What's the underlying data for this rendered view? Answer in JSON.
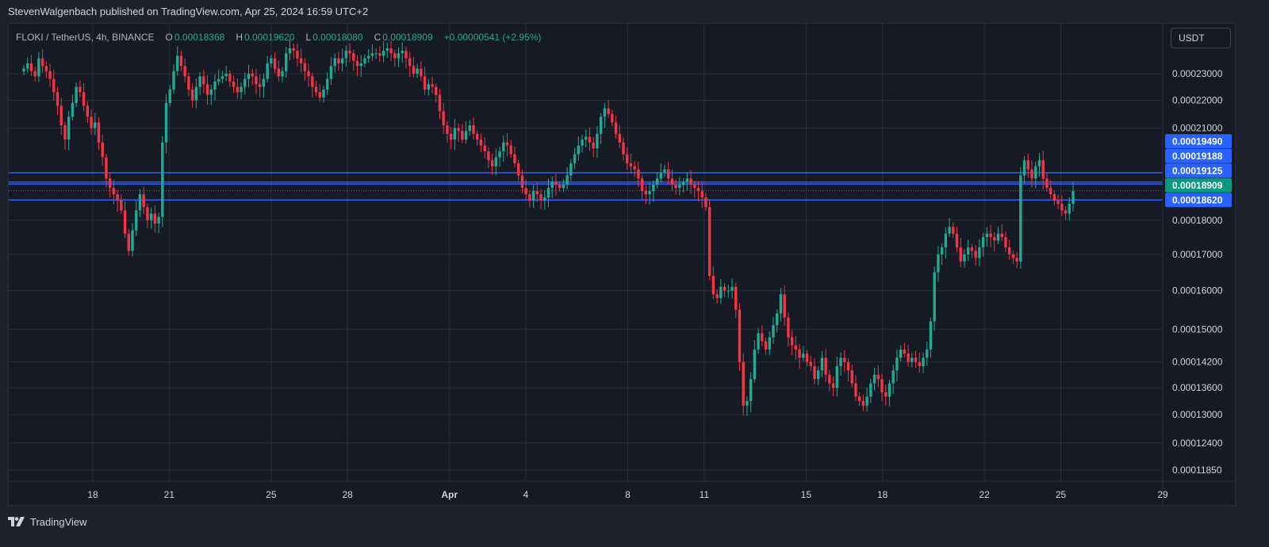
{
  "header": {
    "text": "StevenWalgenbach published on TradingView.com, Apr 25, 2024 16:59 UTC+2"
  },
  "legend": {
    "symbol": "FLOKI / TetherUS, 4h, BINANCE",
    "o_label": "O",
    "o_value": "0.00018368",
    "h_label": "H",
    "h_value": "0.00019620",
    "l_label": "L",
    "l_value": "0.00018080",
    "c_label": "C",
    "c_value": "0.00018909",
    "change": "+0.00000541 (+2.95%)"
  },
  "currency": "USDT",
  "footer": {
    "brand": "TradingView"
  },
  "colors": {
    "up": "#22ab94",
    "down": "#f23645",
    "grid": "#2a2e39",
    "hline": "#2962ff",
    "label_blue": "#2962ff",
    "label_green": "#089981"
  },
  "chart_data": {
    "type": "candlestick",
    "symbol": "FLOKI / TetherUS",
    "interval": "4h",
    "exchange": "BINANCE",
    "scale": "log",
    "x_range_days": [
      "2024-03-15",
      "2024-03-29"
    ],
    "y_ticks": [
      "0.00023000",
      "0.00022000",
      "0.00021000",
      "0.00018000",
      "0.00017000",
      "0.00016000",
      "0.00015000",
      "0.00014200",
      "0.00013600",
      "0.00013000",
      "0.00012400",
      "0.00011850"
    ],
    "x_ticks": [
      {
        "label": "18",
        "day": 18
      },
      {
        "label": "21",
        "day": 21
      },
      {
        "label": "25",
        "day": 25
      },
      {
        "label": "28",
        "day": 28
      },
      {
        "label": "Apr",
        "day": 32
      },
      {
        "label": "4",
        "day": 35
      },
      {
        "label": "8",
        "day": 39
      },
      {
        "label": "11",
        "day": 42
      },
      {
        "label": "15",
        "day": 46
      },
      {
        "label": "18",
        "day": 49
      },
      {
        "label": "22",
        "day": 53
      },
      {
        "label": "25",
        "day": 56
      },
      {
        "label": "29",
        "day": 60
      }
    ],
    "horizontal_lines": [
      0.0001949,
      0.00019188,
      0.00019125,
      0.0001862
    ],
    "price_labels": [
      {
        "text": "0.00019490",
        "value": 0.0001949,
        "kind": "line"
      },
      {
        "text": "0.00019188",
        "value": 0.00019188,
        "kind": "line"
      },
      {
        "text": "0.00019125",
        "value": 0.00019125,
        "kind": "line"
      },
      {
        "text": "0.00018909",
        "value": 0.00018909,
        "kind": "current"
      },
      {
        "text": "0.00018620",
        "value": 0.0001862,
        "kind": "line"
      }
    ],
    "closes": [
      0.000232,
      0.000234,
      0.000231,
      0.000229,
      0.000236,
      0.000233,
      0.000231,
      0.000228,
      0.000223,
      0.000218,
      0.000211,
      0.000206,
      0.000214,
      0.000219,
      0.000225,
      0.000223,
      0.000218,
      0.000214,
      0.00021,
      0.000212,
      0.000205,
      0.0002,
      0.000193,
      0.00019,
      0.000188,
      0.000186,
      0.000183,
      0.000176,
      0.000171,
      0.000177,
      0.000183,
      0.000188,
      0.000184,
      0.00018,
      0.000182,
      0.000179,
      0.000181,
      0.000205,
      0.000219,
      0.000224,
      0.000231,
      0.000237,
      0.000233,
      0.000229,
      0.000224,
      0.00022,
      0.000225,
      0.000229,
      0.000226,
      0.000222,
      0.000224,
      0.000227,
      0.000228,
      0.000229,
      0.00023,
      0.000227,
      0.000225,
      0.000223,
      0.000225,
      0.000228,
      0.00023,
      0.000229,
      0.000226,
      0.000225,
      0.000228,
      0.000234,
      0.000236,
      0.000232,
      0.000229,
      0.000231,
      0.000238,
      0.00024,
      0.000239,
      0.000236,
      0.000234,
      0.000231,
      0.000229,
      0.000225,
      0.000223,
      0.000221,
      0.000224,
      0.000228,
      0.000233,
      0.000236,
      0.000234,
      0.000236,
      0.000239,
      0.000238,
      0.000235,
      0.000233,
      0.000234,
      0.000236,
      0.000237,
      0.000238,
      0.000238,
      0.000237,
      0.000239,
      0.00024,
      0.000238,
      0.000236,
      0.000238,
      0.000239,
      0.000236,
      0.000233,
      0.00023,
      0.000232,
      0.000229,
      0.000224,
      0.000226,
      0.000225,
      0.000222,
      0.000216,
      0.000211,
      0.000208,
      0.000206,
      0.00021,
      0.000209,
      0.000206,
      0.000209,
      0.000211,
      0.000208,
      0.000206,
      0.000204,
      0.000202,
      0.000199,
      0.000197,
      0.0002,
      0.000202,
      0.000205,
      0.000204,
      0.000201,
      0.000198,
      0.000194,
      0.00019,
      0.000188,
      0.000186,
      0.000189,
      0.000188,
      0.000186,
      0.000187,
      0.00019,
      0.000192,
      0.000191,
      0.00019,
      0.000191,
      0.000194,
      0.000198,
      0.000201,
      0.000204,
      0.000206,
      0.000207,
      0.000205,
      0.000203,
      0.000208,
      0.000214,
      0.000217,
      0.000215,
      0.000212,
      0.000208,
      0.000205,
      0.000201,
      0.000198,
      0.000197,
      0.000196,
      0.000193,
      0.000189,
      0.000188,
      0.000189,
      0.000191,
      0.000193,
      0.000195,
      0.000196,
      0.000193,
      0.000191,
      0.00019,
      0.000191,
      0.000192,
      0.000193,
      0.000191,
      0.00019,
      0.000189,
      0.000187,
      0.000184,
      0.000164,
      0.000159,
      0.000158,
      0.000161,
      0.00016,
      0.00016,
      0.000161,
      0.000155,
      0.000142,
      0.000132,
      0.000133,
      0.000138,
      0.000145,
      0.000149,
      0.000147,
      0.000145,
      0.000148,
      0.000151,
      0.000154,
      0.000159,
      0.000153,
      0.000148,
      0.000146,
      0.000145,
      0.000143,
      0.000144,
      0.000142,
      0.000141,
      0.000138,
      0.00014,
      0.000143,
      0.000139,
      0.000137,
      0.000136,
      0.000141,
      0.000143,
      0.000142,
      0.00014,
      0.000137,
      0.000134,
      0.000133,
      0.000132,
      0.000134,
      0.000137,
      0.000139,
      0.000138,
      0.000135,
      0.000134,
      0.000137,
      0.00014,
      0.000143,
      0.000145,
      0.000144,
      0.000142,
      0.000143,
      0.000142,
      0.000141,
      0.000143,
      0.000145,
      0.000152,
      0.000165,
      0.00017,
      0.000172,
      0.000176,
      0.000178,
      0.000176,
      0.000172,
      0.000168,
      0.00017,
      0.000172,
      0.000171,
      0.000169,
      0.000172,
      0.000175,
      0.000176,
      0.000175,
      0.000174,
      0.000176,
      0.000175,
      0.000172,
      0.00017,
      0.000169,
      0.000168,
      0.000194,
      0.000199,
      0.000196,
      0.000193,
      0.000197,
      0.000199,
      0.000193,
      0.00019,
      0.000188,
      0.000186,
      0.000185,
      0.000183,
      0.000182,
      0.000185,
      0.000189
    ]
  }
}
